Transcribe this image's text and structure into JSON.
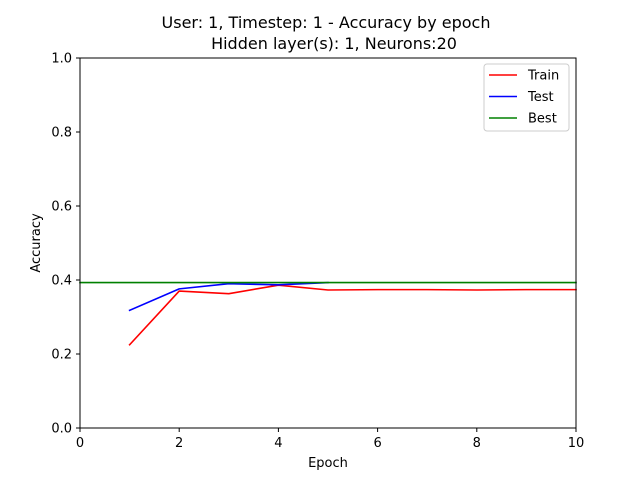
{
  "chart_data": {
    "type": "line",
    "title_line1": "User: 1, Timestep: 1 - Accuracy by epoch",
    "title_line2": "Hidden layer(s): 1, Neurons:20",
    "xlabel": "Epoch",
    "ylabel": "Accuracy",
    "xlim": [
      0,
      10
    ],
    "ylim": [
      0.0,
      1.0
    ],
    "xticks": [
      0,
      2,
      4,
      6,
      8,
      10
    ],
    "xtick_labels": [
      "0",
      "2",
      "4",
      "6",
      "8",
      "10"
    ],
    "yticks": [
      0.0,
      0.2,
      0.4,
      0.6,
      0.8,
      1.0
    ],
    "ytick_labels": [
      "0.0",
      "0.2",
      "0.4",
      "0.6",
      "0.8",
      "1.0"
    ],
    "grid": false,
    "legend_position": "top-right",
    "series": [
      {
        "name": "Train",
        "color": "#ff0000",
        "x": [
          1,
          2,
          3,
          4,
          5,
          6,
          7,
          8,
          9,
          10
        ],
        "y": [
          0.225,
          0.37,
          0.363,
          0.386,
          0.373,
          0.374,
          0.374,
          0.373,
          0.374,
          0.374
        ]
      },
      {
        "name": "Test",
        "color": "#0000ff",
        "x": [
          1,
          2,
          3,
          4,
          5
        ],
        "y": [
          0.318,
          0.376,
          0.39,
          0.387,
          0.393
        ]
      },
      {
        "name": "Best",
        "color": "#008000",
        "x": [
          0,
          10
        ],
        "y": [
          0.393,
          0.393
        ]
      }
    ]
  }
}
